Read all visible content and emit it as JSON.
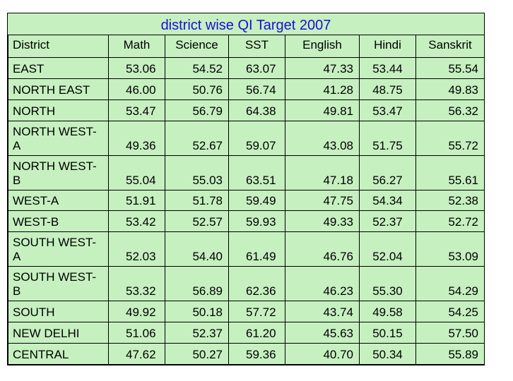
{
  "title": "district wise  QI Target 2007",
  "columns": [
    "District",
    "Math",
    "Science",
    "SST",
    "English",
    "Hindi",
    "Sanskrit"
  ],
  "rows": [
    {
      "district": "EAST",
      "values": [
        "53.06",
        "54.52",
        "63.07",
        "47.33",
        "53.44",
        "55.54"
      ]
    },
    {
      "district": "NORTH EAST",
      "values": [
        "46.00",
        "50.76",
        "56.74",
        "41.28",
        "48.75",
        "49.83"
      ]
    },
    {
      "district": "NORTH",
      "values": [
        "53.47",
        "56.79",
        "64.38",
        "49.81",
        "53.47",
        "56.32"
      ]
    },
    {
      "district": "NORTH WEST-A",
      "values": [
        "49.36",
        "52.67",
        "59.07",
        "43.08",
        "51.75",
        "55.72"
      ]
    },
    {
      "district": "NORTH WEST-B",
      "values": [
        "55.04",
        "55.03",
        "63.51",
        "47.18",
        "56.27",
        "55.61"
      ]
    },
    {
      "district": "WEST-A",
      "values": [
        "51.91",
        "51.78",
        "59.49",
        "47.75",
        "54.34",
        "52.38"
      ]
    },
    {
      "district": "WEST-B",
      "values": [
        "53.42",
        "52.57",
        "59.93",
        "49.33",
        "52.37",
        "52.72"
      ]
    },
    {
      "district": "SOUTH WEST-A",
      "values": [
        "52.03",
        "54.40",
        "61.49",
        "46.76",
        "52.04",
        "53.09"
      ]
    },
    {
      "district": "SOUTH WEST-B",
      "values": [
        "53.32",
        "56.89",
        "62.36",
        "46.23",
        "55.30",
        "54.29"
      ]
    },
    {
      "district": "SOUTH",
      "values": [
        "49.92",
        "50.18",
        "57.72",
        "43.74",
        "49.58",
        "54.25"
      ]
    },
    {
      "district": "NEW DELHI",
      "values": [
        "51.06",
        "52.37",
        "61.20",
        "45.63",
        "50.15",
        "57.50"
      ]
    },
    {
      "district": "CENTRAL",
      "values": [
        "47.62",
        "50.27",
        "59.36",
        "40.70",
        "50.34",
        "55.89"
      ]
    }
  ]
}
